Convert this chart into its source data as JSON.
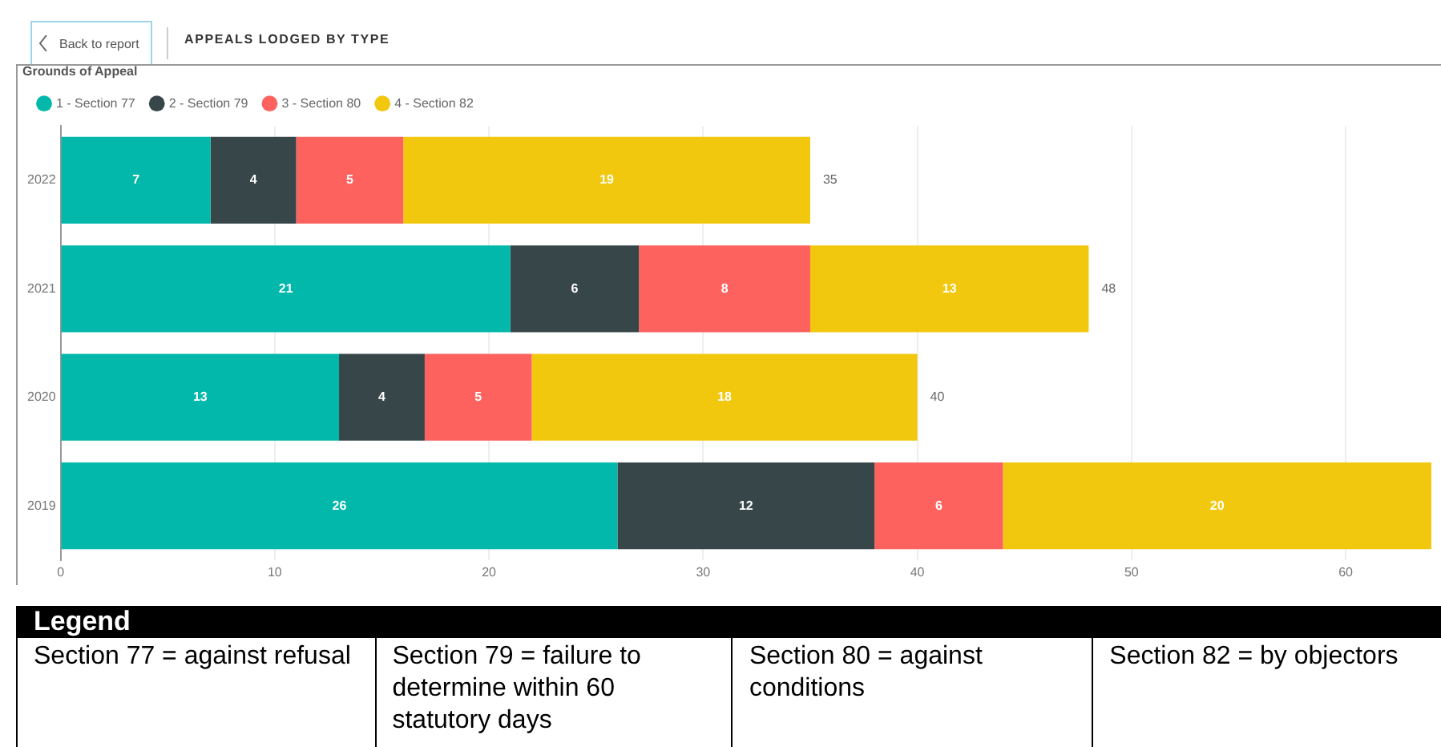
{
  "chart_data": {
    "type": "bar",
    "orientation": "horizontal",
    "stacked": true,
    "title": "APPEALS LODGED BY TYPE",
    "legend_title": "Grounds of Appeal",
    "categories": [
      "2022",
      "2021",
      "2020",
      "2019"
    ],
    "series": [
      {
        "name": "1 - Section 77",
        "color": "#01b8aa",
        "values": [
          7,
          21,
          13,
          26
        ]
      },
      {
        "name": "2 - Section 79",
        "color": "#374649",
        "values": [
          4,
          6,
          4,
          12
        ]
      },
      {
        "name": "3 - Section 80",
        "color": "#fd625e",
        "values": [
          5,
          8,
          5,
          6
        ]
      },
      {
        "name": "4 - Section 82",
        "color": "#f2c80f",
        "values": [
          19,
          13,
          18,
          20
        ]
      }
    ],
    "totals": [
      "35",
      "48",
      "40",
      null
    ],
    "data_labels": true,
    "xlim": [
      0,
      64
    ],
    "xticks": [
      0,
      10,
      20,
      30,
      40,
      50,
      60
    ],
    "grid": "x",
    "legend": "top left",
    "annotations": [
      "Back to report",
      "Legend",
      "Section 77 = against refusal",
      "Section 79 = failure to determine within 60 statutory days",
      "Section 80 = against conditions",
      "Section 82 = by objectors"
    ]
  }
}
